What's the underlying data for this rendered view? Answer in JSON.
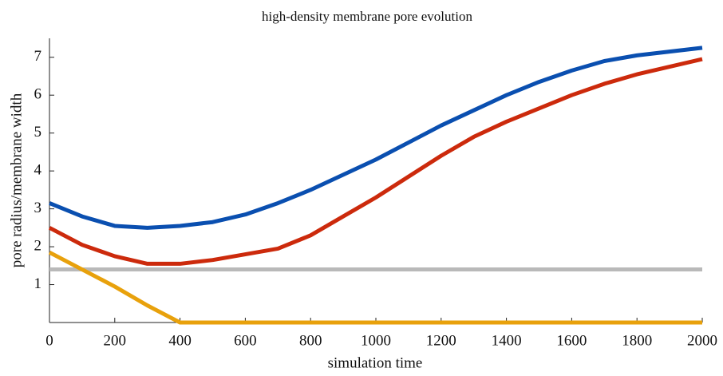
{
  "chart_data": {
    "type": "line",
    "title": "high-density membrane pore evolution",
    "x_label": "simulation time",
    "y_label": "pore radius/membrane width",
    "x": [
      0,
      100,
      200,
      300,
      400,
      500,
      600,
      700,
      800,
      900,
      1000,
      1100,
      1200,
      1300,
      1400,
      1500,
      1600,
      1700,
      1800,
      1900,
      2000
    ],
    "series": [
      {
        "color": "#0a4fb0",
        "values": [
          3.15,
          2.8,
          2.55,
          2.5,
          2.55,
          2.65,
          2.85,
          3.15,
          3.5,
          3.9,
          4.3,
          4.75,
          5.2,
          5.6,
          6.0,
          6.35,
          6.65,
          6.9,
          7.05,
          7.15,
          7.25
        ]
      },
      {
        "color": "#cc2a0c",
        "values": [
          2.5,
          2.05,
          1.75,
          1.55,
          1.55,
          1.65,
          1.8,
          1.95,
          2.3,
          2.8,
          3.3,
          3.85,
          4.4,
          4.9,
          5.3,
          5.65,
          6.0,
          6.3,
          6.55,
          6.75,
          6.95
        ]
      },
      {
        "color": "#e8a10c",
        "values": [
          1.85,
          1.4,
          0.95,
          0.45,
          0,
          0,
          0,
          0,
          0,
          0,
          0,
          0,
          0,
          0,
          0,
          0,
          0,
          0,
          0,
          0,
          0
        ]
      },
      {
        "color": "#b9b9b9",
        "values": [
          1.4,
          1.4,
          1.4,
          1.4,
          1.4,
          1.4,
          1.4,
          1.4,
          1.4,
          1.4,
          1.4,
          1.4,
          1.4,
          1.4,
          1.4,
          1.4,
          1.4,
          1.4,
          1.4,
          1.4,
          1.4
        ]
      }
    ],
    "xlim": [
      0,
      2000
    ],
    "xticks": [
      0,
      200,
      400,
      600,
      800,
      1000,
      1200,
      1400,
      1600,
      1800,
      2000
    ],
    "ylim": [
      0,
      7.5
    ],
    "yticks": [
      1,
      2,
      3,
      4,
      5,
      6,
      7
    ]
  }
}
